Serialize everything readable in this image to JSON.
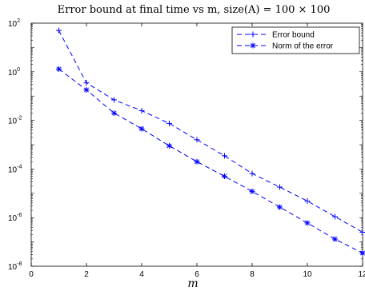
{
  "chart_data": {
    "type": "line",
    "title": "Error bound at final time vs m, size(A) = 100 × 100",
    "xlabel": "m",
    "ylabel": "",
    "x": [
      1,
      2,
      3,
      4,
      5,
      6,
      7,
      8,
      9,
      10,
      11,
      12
    ],
    "xlim": [
      0,
      12
    ],
    "xticks": [
      0,
      2,
      4,
      6,
      8,
      10,
      12
    ],
    "yscale": "log",
    "ylim": [
      1e-08,
      100
    ],
    "yticks": [
      {
        "base": "10",
        "exp": "2",
        "value": 100
      },
      {
        "base": "10",
        "exp": "0",
        "value": 1
      },
      {
        "base": "10",
        "exp": "-2",
        "value": 0.01
      },
      {
        "base": "10",
        "exp": "-4",
        "value": 0.0001
      },
      {
        "base": "10",
        "exp": "-6",
        "value": 1e-06
      },
      {
        "base": "10",
        "exp": "-8",
        "value": 1e-08
      }
    ],
    "grid": false,
    "legend_position": "top-right",
    "series": [
      {
        "name": "Error bound",
        "marker": "plus",
        "color": "#0000ff",
        "values": [
          50,
          0.35,
          0.07,
          0.025,
          0.0075,
          0.0016,
          0.00035,
          6.5e-05,
          1.8e-05,
          4.8e-06,
          1.1e-06,
          2.5e-07
        ]
      },
      {
        "name": "Norm of the error",
        "marker": "asterisk",
        "color": "#0000ff",
        "values": [
          1.3,
          0.18,
          0.02,
          0.0045,
          0.0009,
          0.0002,
          5e-05,
          1.2e-05,
          2.7e-06,
          6e-07,
          1.3e-07,
          3.5e-08
        ]
      }
    ]
  }
}
